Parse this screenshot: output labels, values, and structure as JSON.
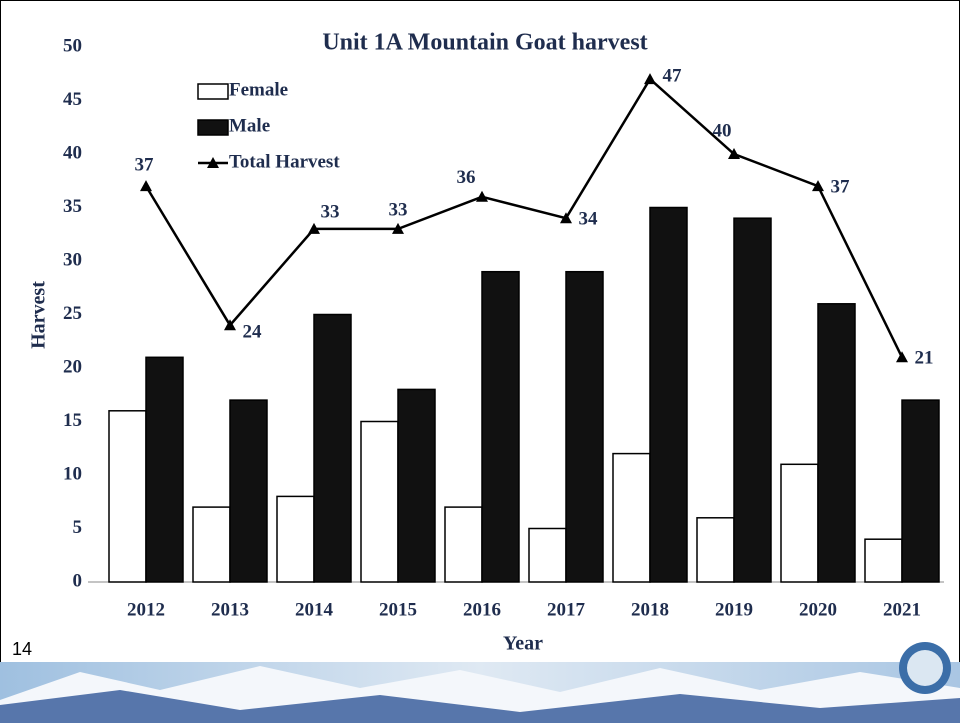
{
  "slide_number": "14",
  "chart_data": {
    "type": "bar",
    "title": "Unit 1A Mountain Goat harvest",
    "x_label": "Year",
    "y_label": "Harvest",
    "categories": [
      "2012",
      "2013",
      "2014",
      "2015",
      "2016",
      "2017",
      "2018",
      "2019",
      "2020",
      "2021"
    ],
    "series": [
      {
        "name": "Female",
        "type": "bar",
        "color": "#ffffff",
        "values": [
          16,
          7,
          8,
          15,
          7,
          5,
          12,
          6,
          11,
          4
        ]
      },
      {
        "name": "Male",
        "type": "bar",
        "color": "#111111",
        "values": [
          21,
          17,
          25,
          18,
          29,
          29,
          35,
          34,
          26,
          17
        ]
      },
      {
        "name": "Total Harvest",
        "type": "line",
        "color": "#000000",
        "values": [
          37,
          24,
          33,
          33,
          36,
          34,
          47,
          40,
          37,
          21
        ]
      }
    ],
    "ylim": [
      0,
      50
    ],
    "yticks": [
      0,
      5,
      10,
      15,
      20,
      25,
      30,
      35,
      40,
      45,
      50
    ],
    "grid": false,
    "legend": "top-left"
  }
}
